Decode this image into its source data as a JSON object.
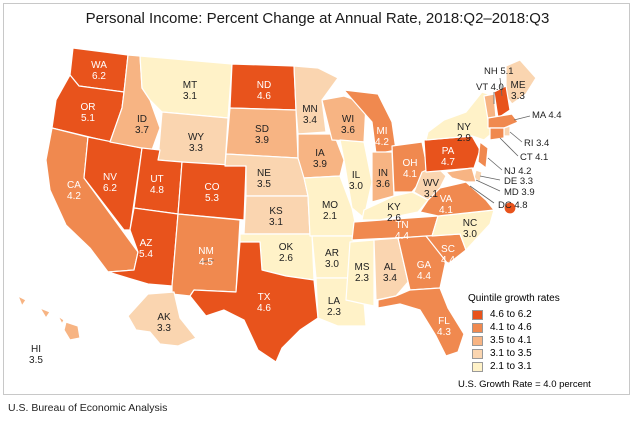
{
  "title": "Personal Income: Percent Change at Annual Rate, 2018:Q2–2018:Q3",
  "source": "U.S. Bureau of Economic Analysis",
  "legend": {
    "title": "Quintile growth rates",
    "items": [
      {
        "label": "4.6 to 6.2",
        "color": "#e8531c"
      },
      {
        "label": "4.1 to 4.6",
        "color": "#f0894f"
      },
      {
        "label": "3.5 to 4.1",
        "color": "#f7b483"
      },
      {
        "label": "3.1 to 3.5",
        "color": "#fad5b0"
      },
      {
        "label": "2.1 to 3.1",
        "color": "#fff2c8"
      }
    ],
    "note": "U.S. Growth Rate = 4.0 percent"
  },
  "states": [
    {
      "abbr": "WA",
      "value": "6.2",
      "tier": 0
    },
    {
      "abbr": "OR",
      "value": "5.1",
      "tier": 0
    },
    {
      "abbr": "CA",
      "value": "4.2",
      "tier": 1
    },
    {
      "abbr": "NV",
      "value": "6.2",
      "tier": 0
    },
    {
      "abbr": "ID",
      "value": "3.7",
      "tier": 2
    },
    {
      "abbr": "MT",
      "value": "3.1",
      "tier": 4
    },
    {
      "abbr": "WY",
      "value": "3.3",
      "tier": 3
    },
    {
      "abbr": "UT",
      "value": "4.8",
      "tier": 0
    },
    {
      "abbr": "AZ",
      "value": "5.4",
      "tier": 0
    },
    {
      "abbr": "CO",
      "value": "5.3",
      "tier": 0
    },
    {
      "abbr": "NM",
      "value": "4.5",
      "tier": 1
    },
    {
      "abbr": "ND",
      "value": "4.6",
      "tier": 0
    },
    {
      "abbr": "SD",
      "value": "3.9",
      "tier": 2
    },
    {
      "abbr": "NE",
      "value": "3.5",
      "tier": 3
    },
    {
      "abbr": "KS",
      "value": "3.1",
      "tier": 3
    },
    {
      "abbr": "OK",
      "value": "2.6",
      "tier": 4
    },
    {
      "abbr": "TX",
      "value": "4.6",
      "tier": 0
    },
    {
      "abbr": "MN",
      "value": "3.4",
      "tier": 3
    },
    {
      "abbr": "IA",
      "value": "3.9",
      "tier": 2
    },
    {
      "abbr": "MO",
      "value": "2.1",
      "tier": 4
    },
    {
      "abbr": "AR",
      "value": "3.0",
      "tier": 4
    },
    {
      "abbr": "LA",
      "value": "2.3",
      "tier": 4
    },
    {
      "abbr": "WI",
      "value": "3.6",
      "tier": 2
    },
    {
      "abbr": "IL",
      "value": "3.0",
      "tier": 4
    },
    {
      "abbr": "MI",
      "value": "4.2",
      "tier": 1
    },
    {
      "abbr": "IN",
      "value": "3.6",
      "tier": 2
    },
    {
      "abbr": "OH",
      "value": "4.1",
      "tier": 1
    },
    {
      "abbr": "KY",
      "value": "2.6",
      "tier": 4
    },
    {
      "abbr": "TN",
      "value": "4.4",
      "tier": 1
    },
    {
      "abbr": "MS",
      "value": "2.3",
      "tier": 4
    },
    {
      "abbr": "AL",
      "value": "3.4",
      "tier": 3
    },
    {
      "abbr": "GA",
      "value": "4.4",
      "tier": 1
    },
    {
      "abbr": "FL",
      "value": "4.3",
      "tier": 1
    },
    {
      "abbr": "SC",
      "value": "4.4",
      "tier": 1
    },
    {
      "abbr": "NC",
      "value": "3.0",
      "tier": 4
    },
    {
      "abbr": "VA",
      "value": "4.1",
      "tier": 1
    },
    {
      "abbr": "WV",
      "value": "3.1",
      "tier": 3
    },
    {
      "abbr": "PA",
      "value": "4.7",
      "tier": 0
    },
    {
      "abbr": "NY",
      "value": "2.9",
      "tier": 4
    },
    {
      "abbr": "ME",
      "value": "3.3",
      "tier": 3
    },
    {
      "abbr": "AK",
      "value": "3.3",
      "tier": 3
    },
    {
      "abbr": "HI",
      "value": "3.5",
      "tier": 2
    },
    {
      "abbr": "NH",
      "value": "5.1",
      "tier": 0
    },
    {
      "abbr": "VT",
      "value": "4.0",
      "tier": 2
    },
    {
      "abbr": "MA",
      "value": "4.4",
      "tier": 1
    },
    {
      "abbr": "RI",
      "value": "3.4",
      "tier": 3
    },
    {
      "abbr": "CT",
      "value": "4.1",
      "tier": 1
    },
    {
      "abbr": "NJ",
      "value": "4.2",
      "tier": 1
    },
    {
      "abbr": "DE",
      "value": "3.3",
      "tier": 3
    },
    {
      "abbr": "MD",
      "value": "3.9",
      "tier": 2
    },
    {
      "abbr": "DC",
      "value": "4.8",
      "tier": 0
    }
  ]
}
